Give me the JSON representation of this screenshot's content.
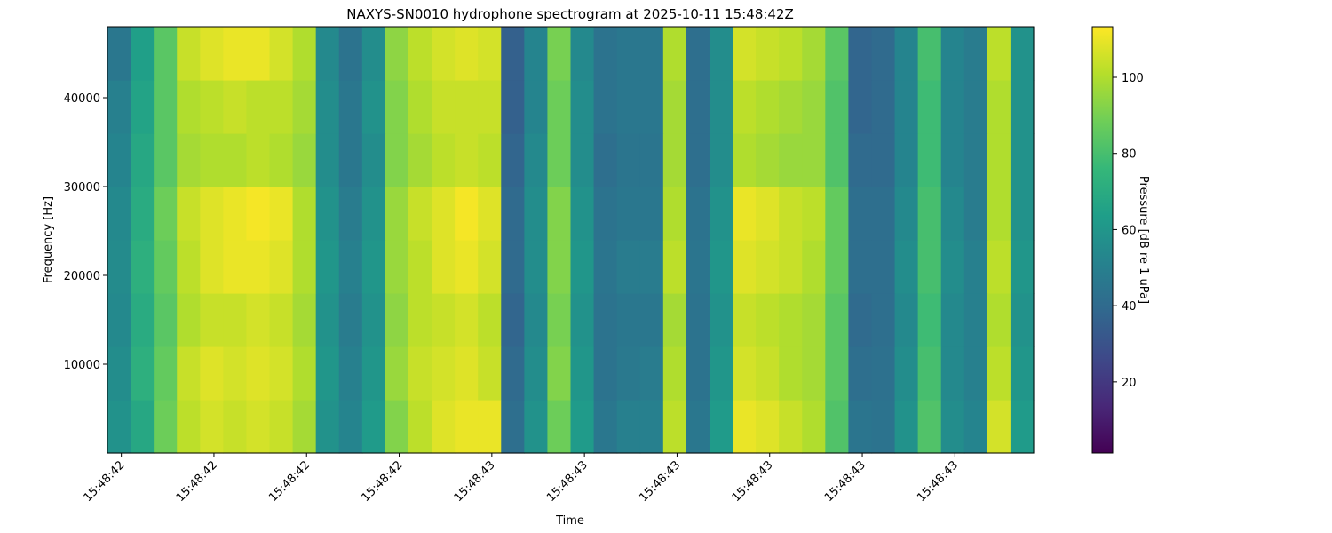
{
  "chart_data": {
    "type": "heatmap",
    "title": "NAXYS-SN0010 hydrophone spectrogram at 2025-10-11 15:48:42Z",
    "x_label": "Time",
    "y_label": "Frequency [Hz]",
    "colorbar_label": "Pressure [dB re 1 uPa]",
    "colormap": "viridis",
    "x": [
      42.585,
      42.61,
      42.635,
      42.66,
      42.685,
      42.71,
      42.735,
      42.76,
      42.785,
      42.81,
      42.835,
      42.86,
      42.885,
      42.91,
      42.935,
      42.96,
      42.985,
      43.01,
      43.035,
      43.06,
      43.085,
      43.11,
      43.135,
      43.16,
      43.185,
      43.21,
      43.235,
      43.26,
      43.285,
      43.31,
      43.335,
      43.36,
      43.385,
      43.41,
      43.435,
      43.46,
      43.485,
      43.51,
      43.535,
      43.56,
      43.585
    ],
    "y": [
      0,
      6000,
      12000,
      18000,
      24000,
      30000,
      36000,
      42000,
      48000
    ],
    "values": [
      [
        58,
        68,
        88,
        102,
        106,
        104,
        106,
        104,
        98,
        58,
        52,
        62,
        92,
        102,
        108,
        110,
        110,
        42,
        58,
        88,
        62,
        46,
        50,
        50,
        102,
        46,
        62,
        110,
        108,
        104,
        100,
        82,
        45,
        44,
        58,
        82,
        56,
        52,
        106,
        62
      ],
      [
        56,
        72,
        86,
        104,
        108,
        106,
        108,
        106,
        100,
        60,
        50,
        60,
        96,
        104,
        106,
        108,
        104,
        40,
        56,
        92,
        60,
        44,
        47,
        48,
        100,
        44,
        60,
        106,
        104,
        100,
        98,
        84,
        42,
        43,
        56,
        80,
        54,
        50,
        102,
        60
      ],
      [
        54,
        70,
        84,
        100,
        104,
        104,
        106,
        104,
        98,
        58,
        48,
        58,
        94,
        102,
        104,
        106,
        102,
        38,
        54,
        90,
        58,
        44,
        46,
        46,
        98,
        44,
        58,
        104,
        102,
        100,
        98,
        84,
        40,
        42,
        54,
        78,
        54,
        50,
        100,
        58
      ],
      [
        55,
        72,
        86,
        102,
        108,
        110,
        110,
        108,
        100,
        60,
        50,
        60,
        96,
        102,
        108,
        110,
        106,
        40,
        56,
        92,
        60,
        45,
        48,
        48,
        102,
        45,
        60,
        108,
        106,
        104,
        100,
        86,
        42,
        42,
        56,
        80,
        56,
        50,
        102,
        60
      ],
      [
        54,
        70,
        88,
        104,
        108,
        110,
        112,
        110,
        100,
        58,
        48,
        58,
        96,
        104,
        108,
        112,
        108,
        40,
        56,
        92,
        58,
        44,
        46,
        46,
        100,
        44,
        58,
        110,
        108,
        104,
        102,
        86,
        42,
        42,
        54,
        80,
        54,
        48,
        100,
        58
      ],
      [
        52,
        68,
        84,
        98,
        100,
        100,
        102,
        100,
        96,
        56,
        46,
        56,
        92,
        98,
        102,
        104,
        102,
        38,
        54,
        88,
        56,
        42,
        45,
        45,
        98,
        42,
        56,
        100,
        98,
        96,
        96,
        82,
        40,
        40,
        52,
        78,
        52,
        48,
        100,
        58
      ],
      [
        50,
        66,
        84,
        100,
        102,
        104,
        102,
        102,
        98,
        56,
        46,
        58,
        92,
        100,
        104,
        104,
        104,
        36,
        52,
        88,
        56,
        44,
        46,
        46,
        98,
        42,
        56,
        102,
        100,
        98,
        96,
        82,
        38,
        40,
        52,
        78,
        52,
        48,
        100,
        58
      ],
      [
        46,
        64,
        84,
        104,
        108,
        110,
        110,
        106,
        100,
        54,
        44,
        56,
        94,
        102,
        106,
        108,
        106,
        36,
        52,
        90,
        54,
        44,
        46,
        46,
        100,
        42,
        56,
        106,
        104,
        102,
        98,
        84,
        38,
        40,
        52,
        80,
        52,
        48,
        102,
        58
      ]
    ],
    "xlim": [
      42.585,
      43.585
    ],
    "xticks": [
      {
        "value": 42.6,
        "label": "15:48:42"
      },
      {
        "value": 42.7,
        "label": "15:48:42"
      },
      {
        "value": 42.8,
        "label": "15:48:42"
      },
      {
        "value": 42.9,
        "label": "15:48:42"
      },
      {
        "value": 43.0,
        "label": "15:48:43"
      },
      {
        "value": 43.1,
        "label": "15:48:43"
      },
      {
        "value": 43.2,
        "label": "15:48:43"
      },
      {
        "value": 43.3,
        "label": "15:48:43"
      },
      {
        "value": 43.4,
        "label": "15:48:43"
      },
      {
        "value": 43.5,
        "label": "15:48:43"
      }
    ],
    "ylim": [
      0,
      48000
    ],
    "yticks": [
      10000,
      20000,
      30000,
      40000
    ],
    "zlim": [
      1.3,
      113.3
    ],
    "zticks": [
      20,
      40,
      60,
      80,
      100
    ]
  }
}
